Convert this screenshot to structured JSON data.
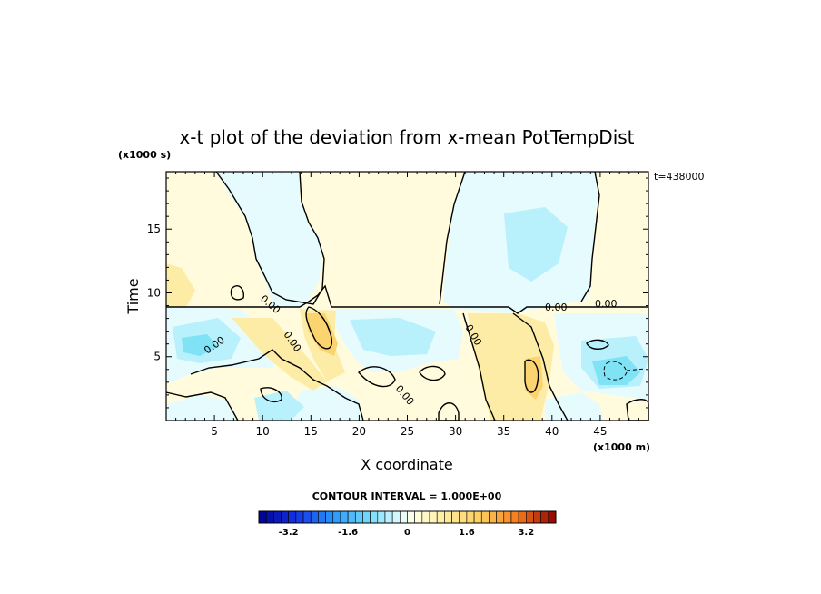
{
  "chart_data": {
    "type": "heatmap",
    "title": "x-t plot of the deviation from x-mean PotTempDist",
    "xlabel": "X coordinate",
    "ylabel": "Time",
    "x_unit": "(x1000 m)",
    "y_unit": "(x1000 s)",
    "time_stamp": "t=438000",
    "xlim": [
      0,
      50
    ],
    "ylim": [
      0,
      19.5
    ],
    "x_ticks": [
      5,
      10,
      15,
      20,
      25,
      30,
      35,
      40,
      45
    ],
    "y_ticks": [
      5,
      10,
      15
    ],
    "contour_interval_text": "CONTOUR INTERVAL = 1.000E+00",
    "contour_labels": [
      "0.00",
      "0.00",
      "0.00",
      "0.00",
      "0.00",
      "0.00",
      "0.00"
    ],
    "colorbar": {
      "range": [
        -4.0,
        4.0
      ],
      "step": 0.2,
      "tick_labels": [
        "-3.2",
        "-1.6",
        "0",
        "1.6",
        "3.2"
      ],
      "tick_values": [
        -3.2,
        -1.6,
        0,
        1.6,
        3.2
      ]
    }
  }
}
